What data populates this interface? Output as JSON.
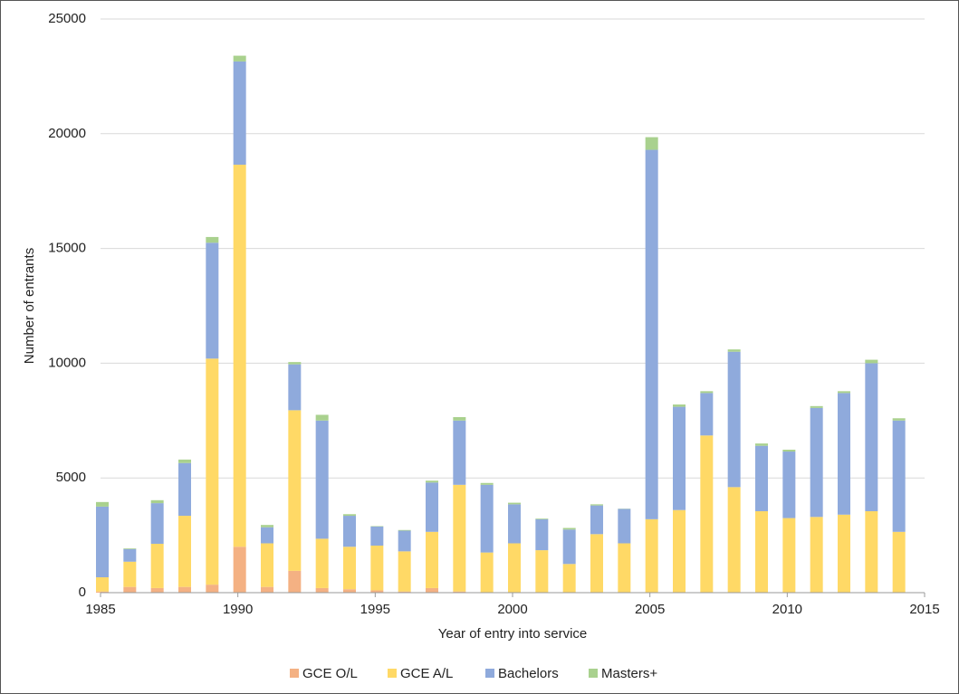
{
  "chart_data": {
    "type": "stacked-bar",
    "x_label": "Year of entry into service",
    "y_label": "Number of entrants",
    "x": [
      1985,
      1986,
      1987,
      1988,
      1989,
      1990,
      1991,
      1992,
      1993,
      1994,
      1995,
      1996,
      1997,
      1998,
      1999,
      2000,
      2001,
      2002,
      2003,
      2004,
      2005,
      2006,
      2007,
      2008,
      2009,
      2010,
      2011,
      2012,
      2013,
      2014
    ],
    "series": [
      {
        "name": "GCE O/L",
        "color": "#f4b183",
        "values": [
          50,
          250,
          200,
          250,
          350,
          2000,
          250,
          950,
          200,
          150,
          100,
          50,
          200,
          50,
          0,
          0,
          0,
          0,
          0,
          0,
          0,
          0,
          0,
          0,
          0,
          0,
          0,
          0,
          0,
          0
        ]
      },
      {
        "name": "GCE A/L",
        "color": "#ffd966",
        "values": [
          620,
          1100,
          1930,
          3100,
          9850,
          16650,
          1900,
          7000,
          2150,
          1850,
          1950,
          1750,
          2450,
          4650,
          1750,
          2150,
          1850,
          1250,
          2550,
          2150,
          3200,
          3600,
          6850,
          4600,
          3550,
          3250,
          3300,
          3400,
          3550,
          2650
        ]
      },
      {
        "name": "Bachelors",
        "color": "#8faadc",
        "values": [
          3080,
          550,
          1770,
          2300,
          5050,
          4500,
          700,
          2000,
          5150,
          1350,
          830,
          900,
          2150,
          2800,
          2950,
          1700,
          1350,
          1500,
          1250,
          1500,
          16100,
          4500,
          1850,
          5900,
          2850,
          2900,
          4750,
          5300,
          6450,
          4850
        ]
      },
      {
        "name": "Masters+",
        "color": "#a9d18e",
        "values": [
          200,
          30,
          130,
          150,
          250,
          250,
          100,
          100,
          250,
          70,
          20,
          30,
          80,
          150,
          80,
          70,
          30,
          70,
          50,
          10,
          550,
          100,
          80,
          100,
          100,
          80,
          80,
          80,
          150,
          100
        ]
      }
    ],
    "xlim": [
      1985,
      2015
    ],
    "xticks": [
      1985,
      1990,
      1995,
      2000,
      2005,
      2010,
      2015
    ],
    "ylim": [
      0,
      25000
    ],
    "yticks": [
      0,
      5000,
      10000,
      15000,
      20000,
      25000
    ],
    "grid": true,
    "legend": "bottom"
  }
}
